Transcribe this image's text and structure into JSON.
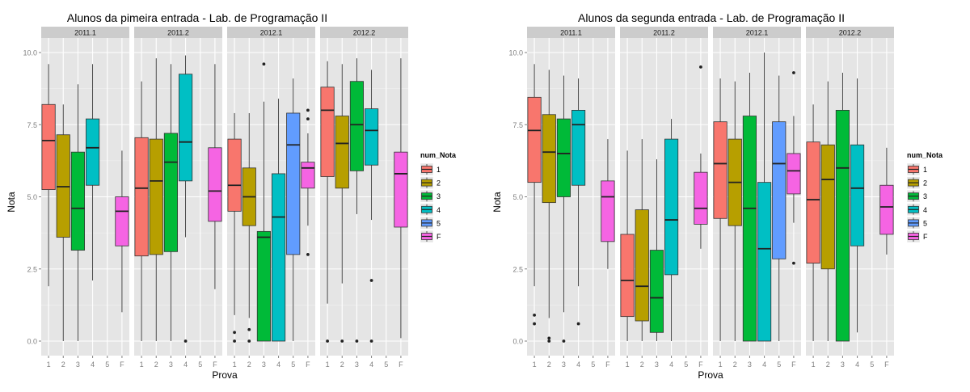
{
  "colors": {
    "panel_bg": "#e5e5e5",
    "strip_bg": "#cccccc",
    "grid_major": "#ffffff",
    "grid_minor": "#f2f2f2",
    "tick_text": "#7f7f7f",
    "groups": {
      "1": "#f8766d",
      "2": "#b79f00",
      "3": "#00ba38",
      "4": "#00bfc4",
      "5": "#619cff",
      "F": "#f564e3"
    }
  },
  "legend": {
    "title": "num_Nota",
    "keys": [
      "1",
      "2",
      "3",
      "4",
      "5",
      "F"
    ]
  },
  "chart_data": [
    {
      "type": "boxplot",
      "title": "Alunos da pimeira entrada -  Lab. de Programação II",
      "xlabel": "Prova",
      "ylabel": "Nota",
      "ylim": [
        0,
        10
      ],
      "y_ticks": [
        "0.0",
        "2.5",
        "5.0",
        "7.5",
        "10.0"
      ],
      "x_categories": [
        "1",
        "2",
        "3",
        "4",
        "5",
        "F"
      ],
      "grid": true,
      "legend_position": "right",
      "facets": [
        {
          "label": "2011.1",
          "boxes": [
            {
              "x": "1",
              "min": 1.9,
              "q1": 5.25,
              "median": 6.95,
              "q3": 8.2,
              "max": 9.6,
              "outliers": []
            },
            {
              "x": "2",
              "min": 0.0,
              "q1": 3.6,
              "median": 5.35,
              "q3": 7.15,
              "max": 8.2,
              "outliers": []
            },
            {
              "x": "3",
              "min": 0.0,
              "q1": 3.15,
              "median": 4.6,
              "q3": 6.55,
              "max": 8.9,
              "outliers": []
            },
            {
              "x": "4",
              "min": 2.1,
              "q1": 5.4,
              "median": 6.7,
              "q3": 7.7,
              "max": 9.6,
              "outliers": []
            },
            {
              "x": "F",
              "min": 1.0,
              "q1": 3.3,
              "median": 4.5,
              "q3": 5.0,
              "max": 6.6,
              "outliers": []
            }
          ]
        },
        {
          "label": "2011.2",
          "boxes": [
            {
              "x": "1",
              "min": 0.0,
              "q1": 2.95,
              "median": 5.3,
              "q3": 7.05,
              "max": 9.0,
              "outliers": []
            },
            {
              "x": "2",
              "min": 0.0,
              "q1": 3.0,
              "median": 5.55,
              "q3": 7.0,
              "max": 9.8,
              "outliers": []
            },
            {
              "x": "3",
              "min": 0.0,
              "q1": 3.1,
              "median": 6.2,
              "q3": 7.2,
              "max": 9.6,
              "outliers": []
            },
            {
              "x": "4",
              "min": 3.6,
              "q1": 5.55,
              "median": 6.9,
              "q3": 9.25,
              "max": 9.9,
              "outliers": [
                0.0
              ]
            },
            {
              "x": "F",
              "min": 1.8,
              "q1": 4.15,
              "median": 5.2,
              "q3": 6.7,
              "max": 9.6,
              "outliers": []
            }
          ]
        },
        {
          "label": "2012.1",
          "boxes": [
            {
              "x": "1",
              "min": 0.9,
              "q1": 4.5,
              "median": 5.4,
              "q3": 7.0,
              "max": 7.9,
              "outliers": [
                0.0,
                0.3
              ]
            },
            {
              "x": "2",
              "min": 0.8,
              "q1": 4.0,
              "median": 5.0,
              "q3": 6.0,
              "max": 7.9,
              "outliers": [
                0.0,
                0.4
              ]
            },
            {
              "x": "3",
              "min": 0.0,
              "q1": 0.0,
              "median": 3.6,
              "q3": 3.8,
              "max": 8.3,
              "outliers": [
                9.6
              ]
            },
            {
              "x": "4",
              "min": 0.0,
              "q1": 0.0,
              "median": 4.3,
              "q3": 5.8,
              "max": 8.4,
              "outliers": []
            },
            {
              "x": "5",
              "min": 0.0,
              "q1": 3.0,
              "median": 6.8,
              "q3": 7.9,
              "max": 9.1,
              "outliers": []
            },
            {
              "x": "F",
              "min": 4.0,
              "q1": 5.3,
              "median": 6.0,
              "q3": 6.2,
              "max": 7.2,
              "outliers": [
                3.0,
                7.7,
                8.0
              ]
            }
          ]
        },
        {
          "label": "2012.2",
          "boxes": [
            {
              "x": "1",
              "min": 1.3,
              "q1": 5.7,
              "median": 8.0,
              "q3": 8.8,
              "max": 9.7,
              "outliers": [
                0.0
              ]
            },
            {
              "x": "2",
              "min": 2.0,
              "q1": 5.3,
              "median": 6.85,
              "q3": 7.8,
              "max": 9.6,
              "outliers": [
                0.0
              ]
            },
            {
              "x": "3",
              "min": 4.4,
              "q1": 5.9,
              "median": 7.5,
              "q3": 9.0,
              "max": 9.8,
              "outliers": [
                0.0
              ]
            },
            {
              "x": "4",
              "min": 4.2,
              "q1": 6.1,
              "median": 7.3,
              "q3": 8.05,
              "max": 9.4,
              "outliers": [
                0.0,
                2.1
              ]
            },
            {
              "x": "F",
              "min": 0.1,
              "q1": 3.95,
              "median": 5.8,
              "q3": 6.55,
              "max": 9.8,
              "outliers": []
            }
          ]
        }
      ]
    },
    {
      "type": "boxplot",
      "title": "Alunos da segunda entrada -  Lab. de Programação II",
      "xlabel": "Prova",
      "ylabel": "Nota",
      "ylim": [
        0,
        10
      ],
      "y_ticks": [
        "0.0",
        "2.5",
        "5.0",
        "7.5",
        "10.0"
      ],
      "x_categories": [
        "1",
        "2",
        "3",
        "4",
        "5",
        "F"
      ],
      "grid": true,
      "legend_position": "right",
      "facets": [
        {
          "label": "2011.1",
          "boxes": [
            {
              "x": "1",
              "min": 1.9,
              "q1": 5.5,
              "median": 7.3,
              "q3": 8.45,
              "max": 9.6,
              "outliers": [
                0.6,
                0.9
              ]
            },
            {
              "x": "2",
              "min": 0.8,
              "q1": 4.8,
              "median": 6.55,
              "q3": 7.85,
              "max": 9.4,
              "outliers": [
                0.0,
                0.1
              ]
            },
            {
              "x": "3",
              "min": 1.0,
              "q1": 5.0,
              "median": 6.5,
              "q3": 7.7,
              "max": 9.2,
              "outliers": [
                0.0
              ]
            },
            {
              "x": "4",
              "min": 1.9,
              "q1": 5.4,
              "median": 7.5,
              "q3": 8.0,
              "max": 9.1,
              "outliers": [
                0.6
              ]
            },
            {
              "x": "F",
              "min": 2.5,
              "q1": 3.45,
              "median": 5.0,
              "q3": 5.55,
              "max": 7.0,
              "outliers": []
            }
          ]
        },
        {
          "label": "2011.2",
          "boxes": [
            {
              "x": "1",
              "min": 0.0,
              "q1": 0.85,
              "median": 2.1,
              "q3": 3.7,
              "max": 6.6,
              "outliers": []
            },
            {
              "x": "2",
              "min": 0.0,
              "q1": 0.7,
              "median": 1.9,
              "q3": 4.55,
              "max": 7.0,
              "outliers": []
            },
            {
              "x": "3",
              "min": 0.0,
              "q1": 0.3,
              "median": 1.5,
              "q3": 3.15,
              "max": 6.3,
              "outliers": []
            },
            {
              "x": "4",
              "min": 0.0,
              "q1": 2.3,
              "median": 4.2,
              "q3": 7.0,
              "max": 7.7,
              "outliers": []
            },
            {
              "x": "F",
              "min": 3.2,
              "q1": 4.05,
              "median": 4.6,
              "q3": 5.85,
              "max": 6.5,
              "outliers": [
                9.5
              ]
            }
          ]
        },
        {
          "label": "2012.1",
          "boxes": [
            {
              "x": "1",
              "min": 0.0,
              "q1": 4.25,
              "median": 6.15,
              "q3": 7.6,
              "max": 9.1,
              "outliers": []
            },
            {
              "x": "2",
              "min": 0.0,
              "q1": 4.0,
              "median": 5.5,
              "q3": 7.0,
              "max": 9.0,
              "outliers": []
            },
            {
              "x": "3",
              "min": 0.0,
              "q1": 0.0,
              "median": 4.6,
              "q3": 7.8,
              "max": 9.3,
              "outliers": []
            },
            {
              "x": "4",
              "min": 0.0,
              "q1": 0.0,
              "median": 3.2,
              "q3": 5.5,
              "max": 10.0,
              "outliers": []
            },
            {
              "x": "5",
              "min": 0.0,
              "q1": 2.85,
              "median": 6.15,
              "q3": 7.6,
              "max": 9.2,
              "outliers": []
            },
            {
              "x": "F",
              "min": 4.1,
              "q1": 5.1,
              "median": 5.9,
              "q3": 6.5,
              "max": 7.8,
              "outliers": [
                2.7,
                9.3
              ]
            }
          ]
        },
        {
          "label": "2012.2",
          "boxes": [
            {
              "x": "1",
              "min": 0.0,
              "q1": 2.7,
              "median": 4.9,
              "q3": 6.9,
              "max": 8.2,
              "outliers": []
            },
            {
              "x": "2",
              "min": 0.0,
              "q1": 2.5,
              "median": 5.6,
              "q3": 6.8,
              "max": 9.0,
              "outliers": []
            },
            {
              "x": "3",
              "min": 0.0,
              "q1": 0.0,
              "median": 6.0,
              "q3": 8.0,
              "max": 9.3,
              "outliers": []
            },
            {
              "x": "4",
              "min": 0.3,
              "q1": 3.3,
              "median": 5.3,
              "q3": 6.8,
              "max": 9.1,
              "outliers": []
            },
            {
              "x": "F",
              "min": 3.0,
              "q1": 3.7,
              "median": 4.65,
              "q3": 5.4,
              "max": 6.7,
              "outliers": []
            }
          ]
        }
      ]
    }
  ]
}
